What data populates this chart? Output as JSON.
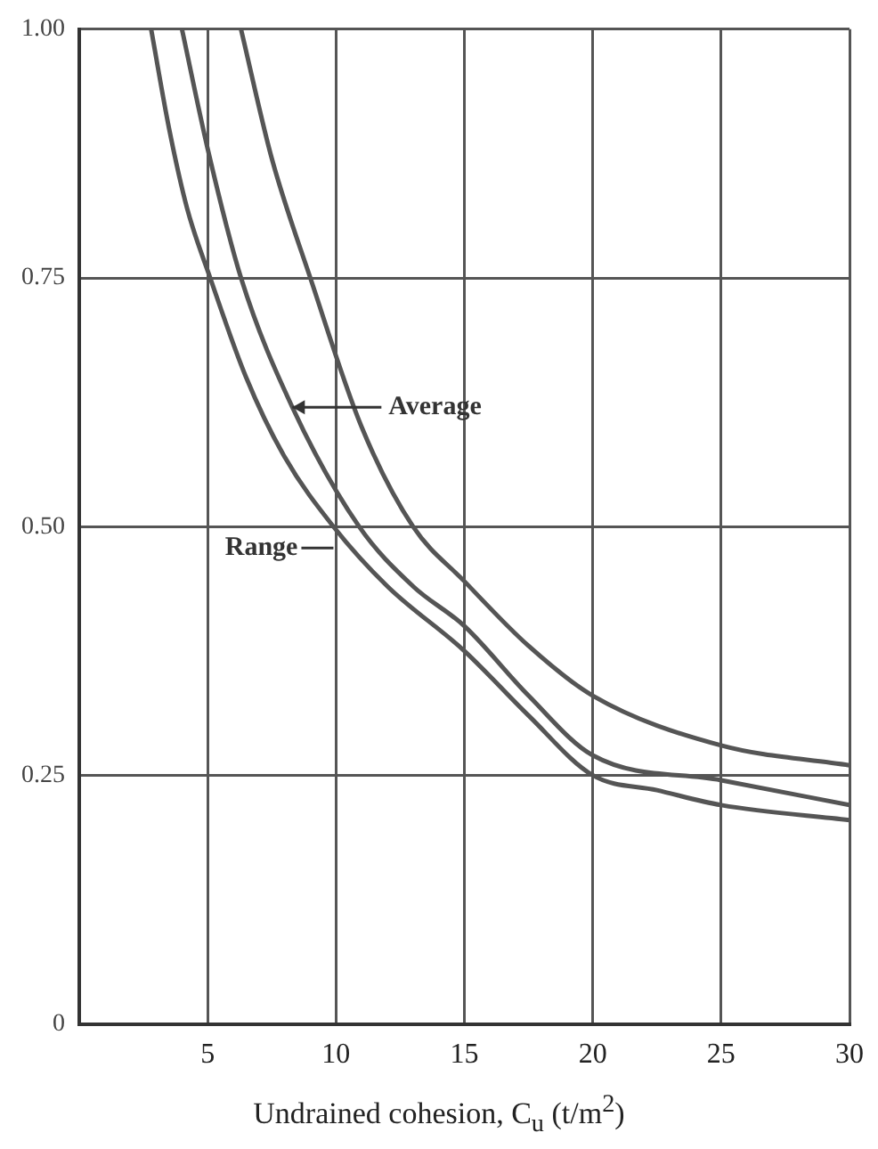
{
  "chart_data": {
    "type": "line",
    "xlabel": "Undrained cohesion, C$_{u}$ (t/m$^{2}$)",
    "xlim": [
      0,
      30
    ],
    "xticks": [
      5,
      10,
      15,
      20,
      25,
      30
    ],
    "ylim": [
      0,
      1
    ],
    "yticks": [
      {
        "value": 0,
        "label": "0"
      },
      {
        "value": 0.25,
        "label": "0.25"
      },
      {
        "value": 0.5,
        "label": "0.50"
      },
      {
        "value": 0.75,
        "label": "0.75"
      },
      {
        "value": 1,
        "label": "1.00"
      }
    ],
    "grid": true,
    "legend": false,
    "marker": "none",
    "line_style": "solid",
    "series": [
      {
        "color": "#555555",
        "x": [
          2.8,
          3.5,
          4.2,
          5.1,
          6.5,
          8,
          9.9,
          12,
          15,
          17.5,
          20,
          22.5,
          25,
          30
        ],
        "values": [
          1.0,
          0.9,
          0.82,
          0.75,
          0.65,
          0.57,
          0.5,
          0.44,
          0.375,
          0.31,
          0.25,
          0.235,
          0.22,
          0.205
        ]
      },
      {
        "color": "#555555",
        "x": [
          4,
          5,
          6.3,
          8.3,
          10.9,
          13,
          15,
          17.5,
          20,
          25,
          30
        ],
        "values": [
          1.0,
          0.88,
          0.75,
          0.62,
          0.5,
          0.44,
          0.4,
          0.33,
          0.27,
          0.245,
          0.22
        ]
      },
      {
        "color": "#555555",
        "x": [
          6.3,
          7.5,
          9,
          11,
          13,
          15,
          17.5,
          20,
          25,
          30
        ],
        "values": [
          1.0,
          0.87,
          0.75,
          0.6,
          0.5,
          0.445,
          0.38,
          0.33,
          0.28,
          0.26
        ]
      }
    ],
    "annotations": [
      {
        "text": "Average",
        "x": 8.3,
        "y": 0.62
      },
      {
        "text": "Range",
        "x": 9.9,
        "y": 0.5
      }
    ]
  }
}
